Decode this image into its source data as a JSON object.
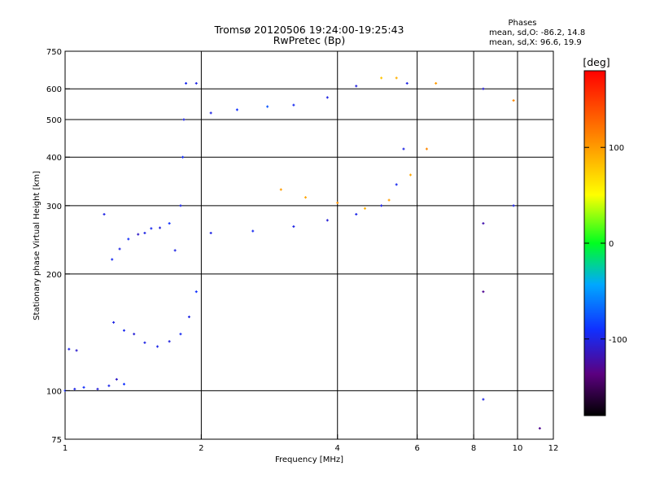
{
  "header": {
    "title": "Tromsø 20120506 19:24:00-19:25:43",
    "subtitle": "RwPretec (Bp)"
  },
  "phases_box": {
    "heading": "Phases",
    "line_o": "mean, sd,O: -86.2, 14.8",
    "line_x": "mean, sd,X:  96.6, 19.9"
  },
  "colorbar": {
    "unit_label": "[deg]",
    "range": [
      -180,
      180
    ],
    "ticks": [
      {
        "value": 100,
        "label": "100"
      },
      {
        "value": 0,
        "label": "0"
      },
      {
        "value": -100,
        "label": "-100"
      }
    ]
  },
  "chart_data": {
    "type": "scatter",
    "title": "Tromsø 20120506 19:24:00-19:25:43",
    "subtitle": "RwPretec (Bp)",
    "xlabel": "Frequency [MHz]",
    "ylabel": "Stationary phase Virtual Height [km]",
    "x_scale": "log",
    "y_scale": "log",
    "xlim": [
      1,
      12
    ],
    "ylim": [
      75,
      750
    ],
    "grid": true,
    "x_ticks": [
      {
        "value": 1,
        "label": "1"
      },
      {
        "value": 2,
        "label": "2"
      },
      {
        "value": 4,
        "label": "4"
      },
      {
        "value": 6,
        "label": "6"
      },
      {
        "value": 8,
        "label": "8"
      },
      {
        "value": 10,
        "label": "10"
      },
      {
        "value": 12,
        "label": "12"
      }
    ],
    "y_ticks": [
      {
        "value": 75,
        "label": "75"
      },
      {
        "value": 100,
        "label": "100"
      },
      {
        "value": 200,
        "label": "200"
      },
      {
        "value": 300,
        "label": "300"
      },
      {
        "value": 400,
        "label": "400"
      },
      {
        "value": 500,
        "label": "500"
      },
      {
        "value": 600,
        "label": "600"
      },
      {
        "value": 750,
        "label": "750"
      }
    ],
    "x_gridlines": [
      2,
      4,
      6,
      8,
      10
    ],
    "y_gridlines": [
      100,
      200,
      300,
      400,
      500,
      600
    ],
    "color_encoding": "phase [deg]",
    "points": [
      {
        "f": 1.0,
        "h": 100,
        "phase": -95
      },
      {
        "f": 1.05,
        "h": 101,
        "phase": -100
      },
      {
        "f": 1.1,
        "h": 102,
        "phase": -92
      },
      {
        "f": 1.18,
        "h": 101,
        "phase": -105
      },
      {
        "f": 1.25,
        "h": 103,
        "phase": -98
      },
      {
        "f": 1.3,
        "h": 107,
        "phase": -110
      },
      {
        "f": 1.35,
        "h": 104,
        "phase": -90
      },
      {
        "f": 1.02,
        "h": 128,
        "phase": -100
      },
      {
        "f": 1.06,
        "h": 127,
        "phase": -108
      },
      {
        "f": 1.22,
        "h": 285,
        "phase": -100
      },
      {
        "f": 1.27,
        "h": 218,
        "phase": -95
      },
      {
        "f": 1.32,
        "h": 232,
        "phase": -100
      },
      {
        "f": 1.38,
        "h": 246,
        "phase": -92
      },
      {
        "f": 1.45,
        "h": 253,
        "phase": -110
      },
      {
        "f": 1.5,
        "h": 255,
        "phase": -100
      },
      {
        "f": 1.55,
        "h": 262,
        "phase": -96
      },
      {
        "f": 1.62,
        "h": 263,
        "phase": -104
      },
      {
        "f": 1.7,
        "h": 270,
        "phase": -90
      },
      {
        "f": 1.28,
        "h": 150,
        "phase": -100
      },
      {
        "f": 1.35,
        "h": 143,
        "phase": -96
      },
      {
        "f": 1.42,
        "h": 140,
        "phase": -105
      },
      {
        "f": 1.5,
        "h": 133,
        "phase": -100
      },
      {
        "f": 1.6,
        "h": 130,
        "phase": -98
      },
      {
        "f": 1.7,
        "h": 134,
        "phase": -102
      },
      {
        "f": 1.8,
        "h": 140,
        "phase": -95
      },
      {
        "f": 1.88,
        "h": 155,
        "phase": -100
      },
      {
        "f": 1.95,
        "h": 180,
        "phase": -90
      },
      {
        "f": 1.75,
        "h": 230,
        "phase": -100
      },
      {
        "f": 1.8,
        "h": 300,
        "phase": -98
      },
      {
        "f": 1.82,
        "h": 400,
        "phase": -92
      },
      {
        "f": 1.83,
        "h": 500,
        "phase": -100
      },
      {
        "f": 1.85,
        "h": 620,
        "phase": -96
      },
      {
        "f": 1.95,
        "h": 620,
        "phase": -100
      },
      {
        "f": 2.1,
        "h": 520,
        "phase": -100
      },
      {
        "f": 2.4,
        "h": 530,
        "phase": -90
      },
      {
        "f": 2.8,
        "h": 540,
        "phase": -75
      },
      {
        "f": 3.2,
        "h": 545,
        "phase": -95
      },
      {
        "f": 3.8,
        "h": 570,
        "phase": -100
      },
      {
        "f": 4.4,
        "h": 610,
        "phase": -102
      },
      {
        "f": 5.0,
        "h": 640,
        "phase": 80
      },
      {
        "f": 5.4,
        "h": 640,
        "phase": 90
      },
      {
        "f": 2.1,
        "h": 255,
        "phase": -100
      },
      {
        "f": 2.6,
        "h": 258,
        "phase": -95
      },
      {
        "f": 3.2,
        "h": 265,
        "phase": -100
      },
      {
        "f": 3.8,
        "h": 275,
        "phase": -105
      },
      {
        "f": 4.4,
        "h": 285,
        "phase": -98
      },
      {
        "f": 5.0,
        "h": 300,
        "phase": -100
      },
      {
        "f": 5.4,
        "h": 340,
        "phase": -95
      },
      {
        "f": 5.6,
        "h": 420,
        "phase": -100
      },
      {
        "f": 5.7,
        "h": 620,
        "phase": -100
      },
      {
        "f": 3.0,
        "h": 330,
        "phase": 100
      },
      {
        "f": 3.4,
        "h": 315,
        "phase": 95
      },
      {
        "f": 4.0,
        "h": 305,
        "phase": 105
      },
      {
        "f": 4.6,
        "h": 295,
        "phase": 90
      },
      {
        "f": 5.2,
        "h": 310,
        "phase": 100
      },
      {
        "f": 5.8,
        "h": 360,
        "phase": 95
      },
      {
        "f": 6.3,
        "h": 420,
        "phase": 110
      },
      {
        "f": 6.6,
        "h": 620,
        "phase": 100
      },
      {
        "f": 8.4,
        "h": 600,
        "phase": -105
      },
      {
        "f": 8.4,
        "h": 270,
        "phase": -120
      },
      {
        "f": 8.4,
        "h": 180,
        "phase": -130
      },
      {
        "f": 8.4,
        "h": 95,
        "phase": -100
      },
      {
        "f": 9.8,
        "h": 560,
        "phase": 110
      },
      {
        "f": 9.8,
        "h": 300,
        "phase": -100
      },
      {
        "f": 11.2,
        "h": 80,
        "phase": -130
      }
    ]
  }
}
